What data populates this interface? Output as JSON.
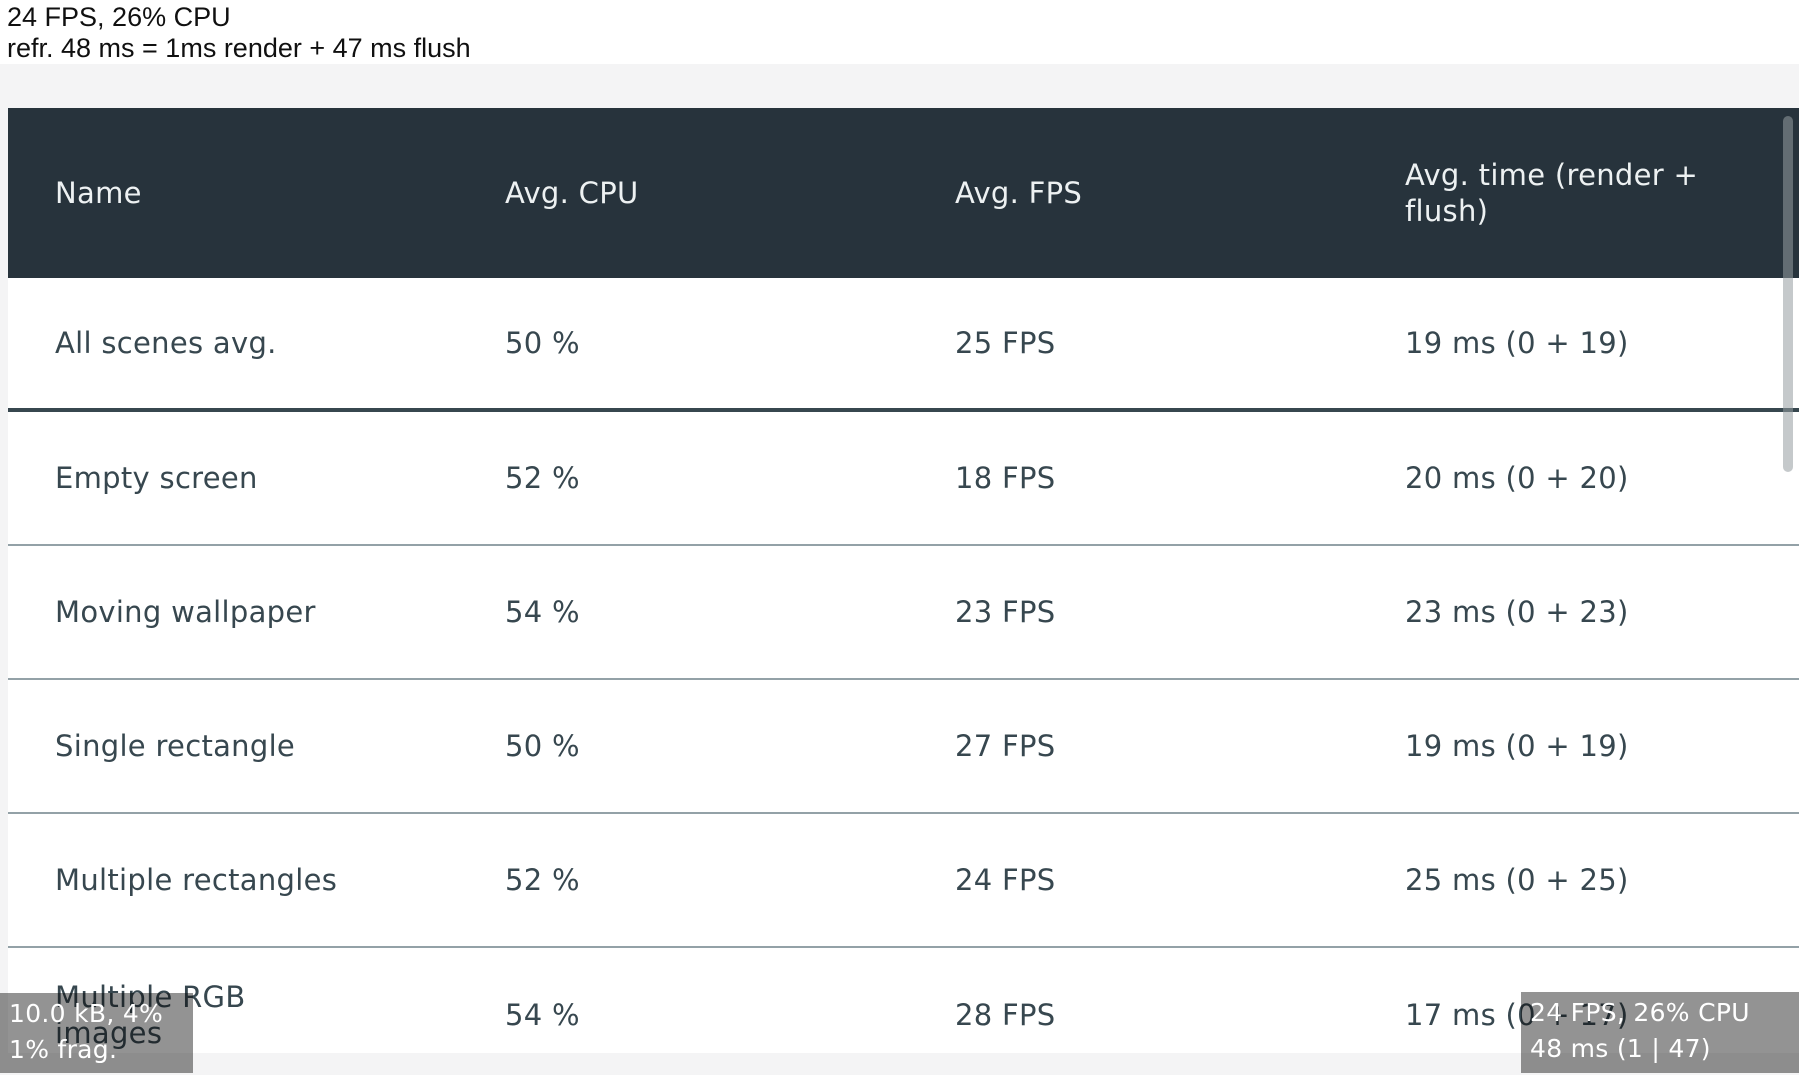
{
  "hud": {
    "top_left": {
      "fps_cpu": "24 FPS, 26% CPU",
      "refresh": "refr. 48 ms = 1ms render + 47 ms flush"
    },
    "bottom_left": {
      "memory": "10.0 kB, 4%",
      "fragmentation": "1% frag."
    },
    "bottom_right": {
      "fps_cpu": "24 FPS, 26% CPU",
      "timing": "48 ms (1 | 47)"
    }
  },
  "table": {
    "columns": [
      {
        "key": "name",
        "label": "Name"
      },
      {
        "key": "cpu",
        "label": "Avg. CPU"
      },
      {
        "key": "fps",
        "label": "Avg. FPS"
      },
      {
        "key": "time",
        "label": "Avg. time (render +\nflush)"
      }
    ],
    "rows": [
      {
        "name": "All scenes avg.",
        "cpu": "50 %",
        "fps": "25 FPS",
        "time": "19 ms (0 + 19)",
        "summary": true
      },
      {
        "name": "Empty screen",
        "cpu": "52 %",
        "fps": "18 FPS",
        "time": "20 ms (0 + 20)"
      },
      {
        "name": "Moving wallpaper",
        "cpu": "54 %",
        "fps": "23 FPS",
        "time": "23 ms (0 + 23)"
      },
      {
        "name": "Single rectangle",
        "cpu": "50 %",
        "fps": "27 FPS",
        "time": "19 ms (0 + 19)"
      },
      {
        "name": "Multiple rectangles",
        "cpu": "52 %",
        "fps": "24 FPS",
        "time": "25 ms (0 + 25)"
      },
      {
        "name": "Multiple RGB\nimages",
        "cpu": "54 %",
        "fps": "28 FPS",
        "time": "17 ms (0 + 17)"
      }
    ]
  },
  "colors": {
    "header_bg": "#27333C",
    "row_text": "#37474F",
    "summary_divider": "#37474F",
    "row_divider": "#93A1A7",
    "page_band": "#F4F4F5",
    "overlay_bg": "rgba(10,10,10,0.44)",
    "overlay_text": "#FFFFFF"
  }
}
